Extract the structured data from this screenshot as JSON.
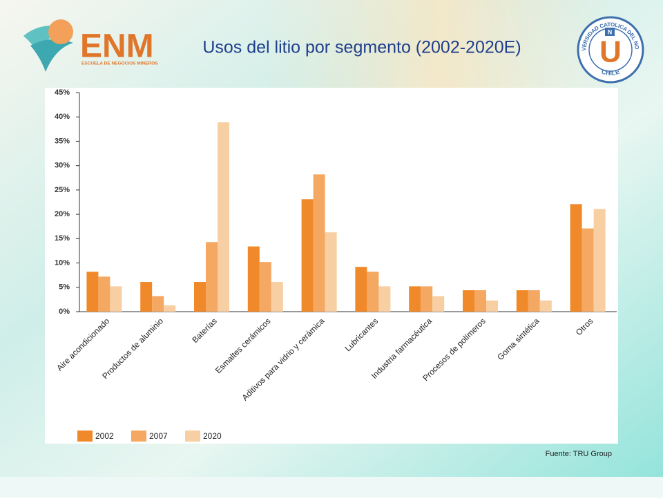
{
  "header": {
    "logo_left": {
      "name": "ENM",
      "subtitle": "ESCUELA DE NEGOCIOS MINEROS"
    },
    "logo_right": {
      "letter": "N",
      "initial": "U",
      "name": "UNIVERSIDAD CATOLICA DEL NORTE",
      "country": "CHILE"
    }
  },
  "chart_data": {
    "type": "bar",
    "title": "Usos del litio por segmento (2002-2020E)",
    "source": "Fuente: TRU Group",
    "categories": [
      "Aire acondicionado",
      "Productos de aluminio",
      "Baterías",
      "Esmaltes cerámicos",
      "Aditivos para vidrio y cerámica",
      "Lubricantes",
      "Industria farmacéutica",
      "Procesos de polímeros",
      "Goma sintética",
      "Otros"
    ],
    "series": [
      {
        "name": "2002",
        "color": "#f0892a",
        "values": [
          8.2,
          6.1,
          6.1,
          13.4,
          23.1,
          9.2,
          5.2,
          4.4,
          4.4,
          22.1
        ]
      },
      {
        "name": "2007",
        "color": "#f4a862",
        "values": [
          7.2,
          3.2,
          14.3,
          10.2,
          28.2,
          8.2,
          5.2,
          4.4,
          4.4,
          17.1
        ]
      },
      {
        "name": "2020",
        "color": "#f8cfa2",
        "values": [
          5.2,
          1.3,
          38.9,
          6.1,
          16.3,
          5.2,
          3.2,
          2.3,
          2.3,
          21.1
        ]
      }
    ],
    "ylim": [
      0,
      45
    ],
    "yticks": [
      {
        "value": 0,
        "label": "0%"
      },
      {
        "value": 5,
        "label": "5%"
      },
      {
        "value": 10,
        "label": "10%"
      },
      {
        "value": 15,
        "label": "15%"
      },
      {
        "value": 20,
        "label": "20%"
      },
      {
        "value": 25,
        "label": "25%"
      },
      {
        "value": 30,
        "label": "30%"
      },
      {
        "value": 35,
        "label": "35%"
      },
      {
        "value": 40,
        "label": "40%"
      },
      {
        "value": 45,
        "label": "45%"
      }
    ],
    "legend": "bottom-left",
    "grid": false
  }
}
